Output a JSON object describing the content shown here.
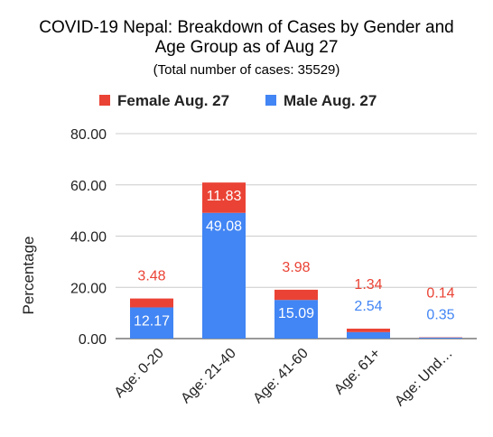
{
  "chart_data": {
    "type": "bar",
    "stacked": true,
    "title_lines": [
      "COVID-19 Nepal: Breakdown of Cases by Gender and",
      "Age Group as of Aug 27"
    ],
    "subtitle": "(Total number of cases: 35529)",
    "ylabel": "Percentage",
    "xlabel": "",
    "ylim": [
      0,
      80
    ],
    "yticks": [
      "0.00",
      "20.00",
      "40.00",
      "60.00",
      "80.00"
    ],
    "ytick_values": [
      0,
      20,
      40,
      60,
      80
    ],
    "grid": true,
    "legend_position": "top",
    "categories": [
      "Age: 0-20",
      "Age: 21-40",
      "Age: 41-60",
      "Age: 61+",
      "Age: Und…"
    ],
    "series": [
      {
        "name": "Male Aug. 27",
        "color": "#4285f4",
        "values": [
          12.17,
          49.08,
          15.09,
          2.54,
          0.35
        ],
        "labels": [
          "12.17",
          "49.08",
          "15.09",
          "2.54",
          "0.35"
        ]
      },
      {
        "name": "Female Aug. 27",
        "color": "#ea4335",
        "values": [
          3.48,
          11.83,
          3.98,
          1.34,
          0.14
        ],
        "labels": [
          "3.48",
          "11.83",
          "3.98",
          "1.34",
          "0.14"
        ]
      }
    ],
    "legend_order": [
      1,
      0
    ]
  }
}
